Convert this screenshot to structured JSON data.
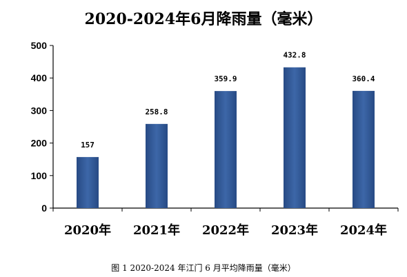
{
  "chart_data": {
    "type": "bar",
    "title": "2020-2024年6月降雨量（毫米）",
    "caption": "图 1 2020-2024 年江门 6 月平均降雨量（毫米）",
    "categories": [
      "2020年",
      "2021年",
      "2022年",
      "2023年",
      "2024年"
    ],
    "values": [
      157,
      258.8,
      359.9,
      432.8,
      360.4
    ],
    "value_labels": [
      "157",
      "258.8",
      "359.9",
      "432.8",
      "360.4"
    ],
    "ylim": [
      0,
      500
    ],
    "yticks": [
      "0",
      "100",
      "200",
      "300",
      "400",
      "500"
    ],
    "xlabel": "",
    "ylabel": "",
    "grid": false,
    "bar_color": "#3d67a8",
    "bar_color_dark": "#274a84"
  }
}
